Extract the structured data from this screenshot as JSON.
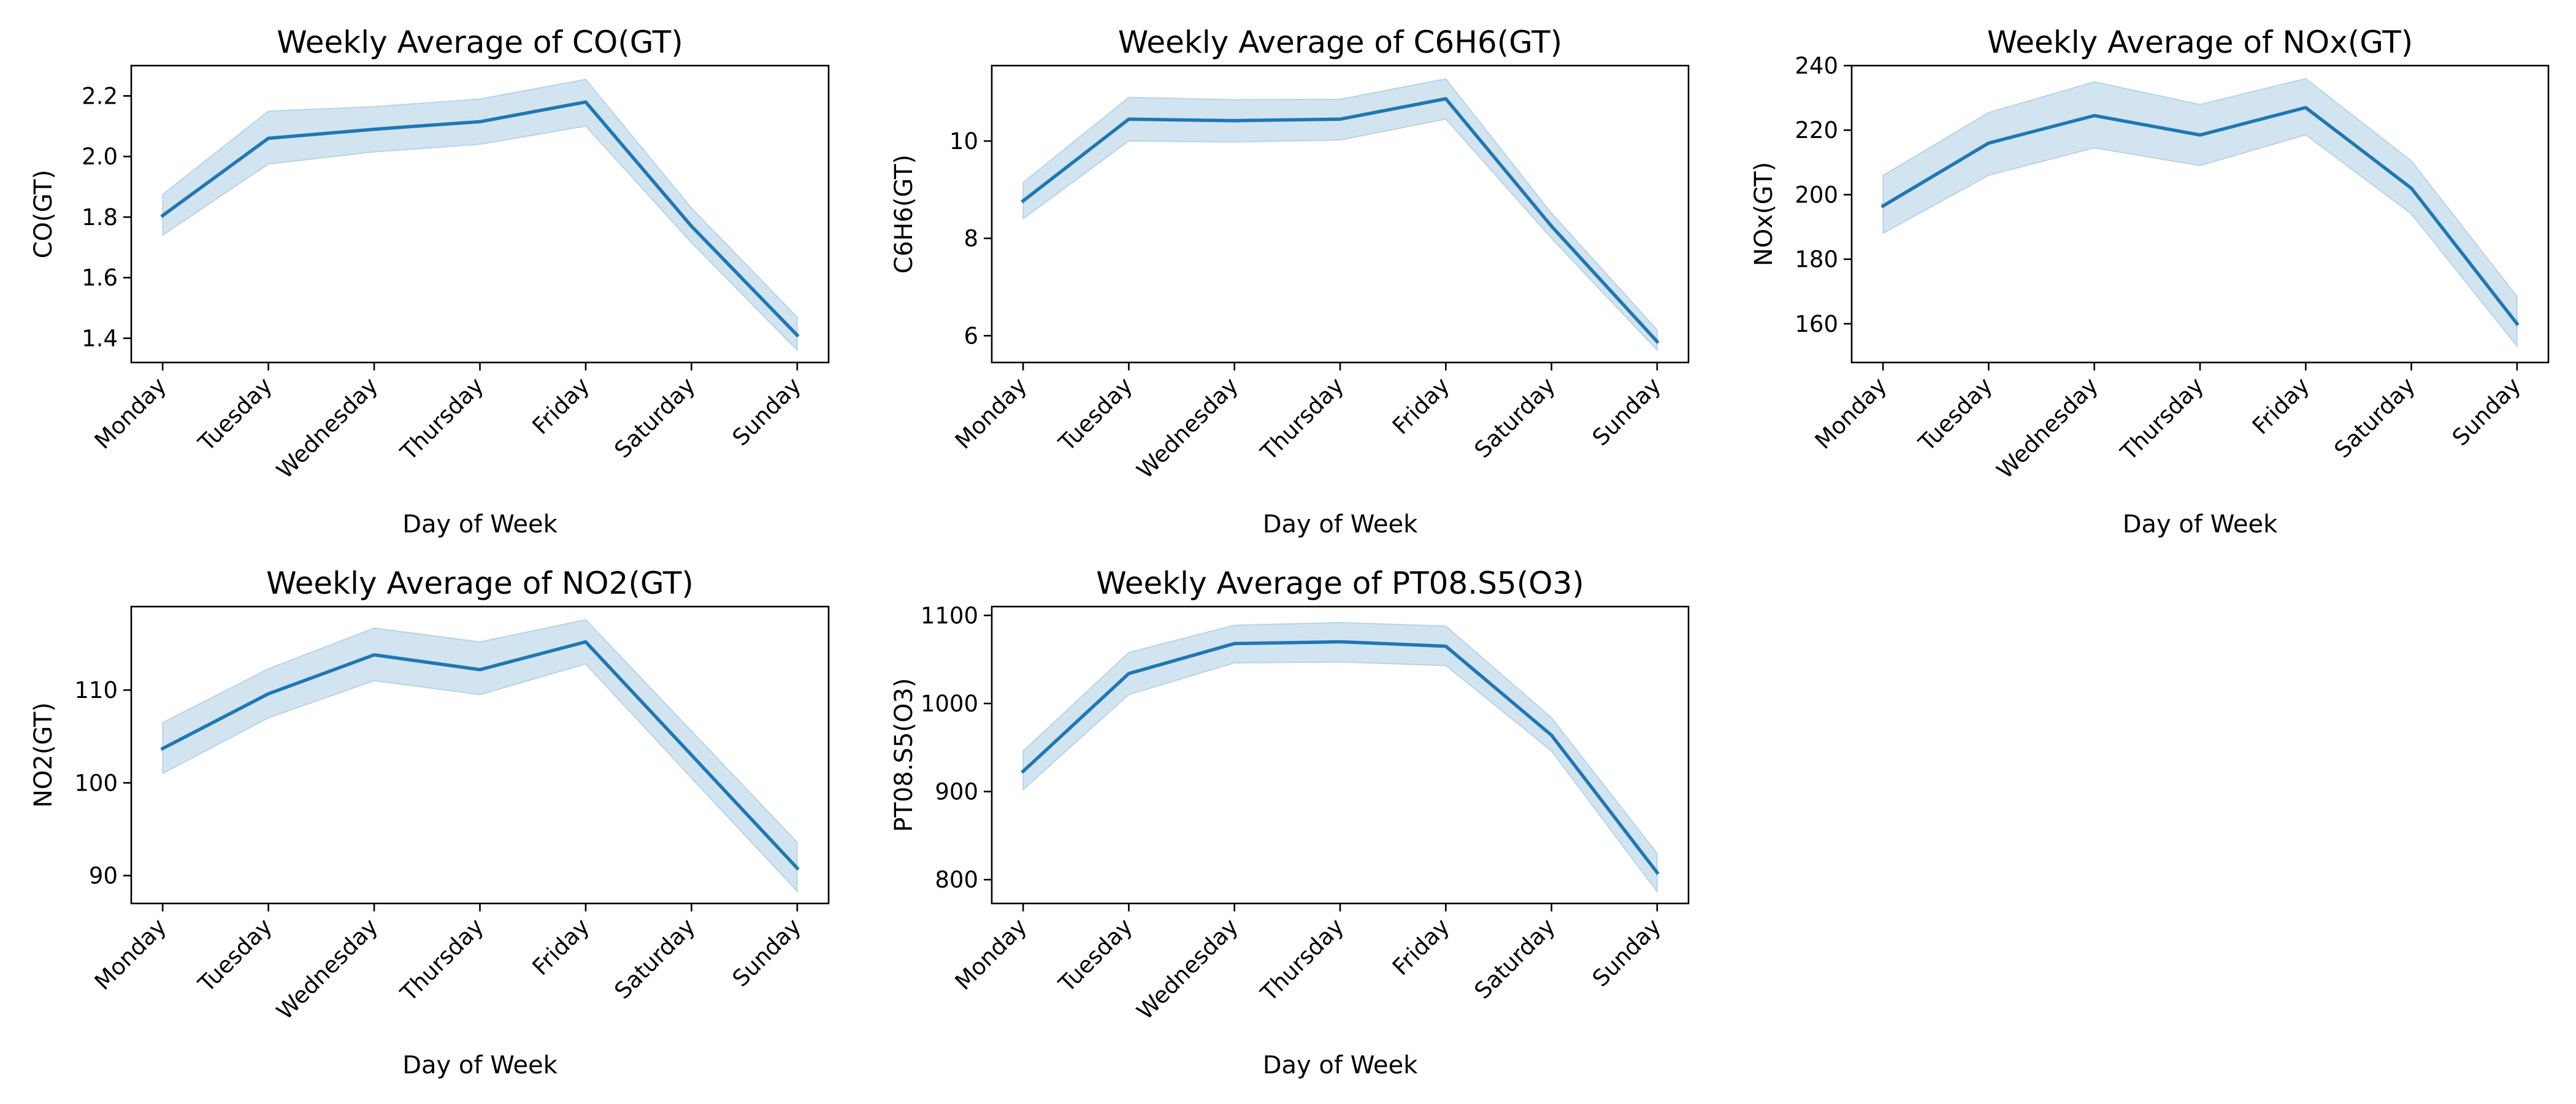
{
  "chart_data": [
    {
      "type": "line",
      "title": "Weekly Average of CO(GT)",
      "xlabel": "Day of Week",
      "ylabel": "CO(GT)",
      "categories": [
        "Monday",
        "Tuesday",
        "Wednesday",
        "Thursday",
        "Friday",
        "Saturday",
        "Sunday"
      ],
      "series": [
        {
          "values": [
            1.805,
            2.06,
            2.09,
            2.115,
            2.18,
            1.77,
            1.41
          ],
          "ci_lower": [
            1.74,
            1.975,
            2.015,
            2.04,
            2.1,
            1.715,
            1.36
          ],
          "ci_upper": [
            1.875,
            2.15,
            2.165,
            2.19,
            2.255,
            1.83,
            1.47
          ]
        }
      ],
      "ylim": [
        1.32,
        2.3
      ],
      "yticks": [
        1.4,
        1.6,
        1.8,
        2.0,
        2.2
      ],
      "ytick_labels": [
        "1.4",
        "1.6",
        "1.8",
        "2.0",
        "2.2"
      ],
      "grid": false,
      "line_color": "#1f77b4",
      "band_color": "#1f77b4"
    },
    {
      "type": "line",
      "title": "Weekly Average of C6H6(GT)",
      "xlabel": "Day of Week",
      "ylabel": "C6H6(GT)",
      "categories": [
        "Monday",
        "Tuesday",
        "Wednesday",
        "Thursday",
        "Friday",
        "Saturday",
        "Sunday"
      ],
      "series": [
        {
          "values": [
            8.77,
            10.45,
            10.42,
            10.45,
            10.87,
            8.25,
            5.88
          ],
          "ci_lower": [
            8.4,
            10.0,
            9.98,
            10.02,
            10.45,
            8.0,
            5.7
          ],
          "ci_upper": [
            9.15,
            10.9,
            10.85,
            10.86,
            11.28,
            8.52,
            6.12
          ]
        }
      ],
      "ylim": [
        5.45,
        11.55
      ],
      "yticks": [
        6,
        8,
        10
      ],
      "ytick_labels": [
        "6",
        "8",
        "10"
      ],
      "grid": false,
      "line_color": "#1f77b4",
      "band_color": "#1f77b4"
    },
    {
      "type": "line",
      "title": "Weekly Average of NOx(GT)",
      "xlabel": "Day of Week",
      "ylabel": "NOx(GT)",
      "categories": [
        "Monday",
        "Tuesday",
        "Wednesday",
        "Thursday",
        "Friday",
        "Saturday",
        "Sunday"
      ],
      "series": [
        {
          "values": [
            196.5,
            216.0,
            224.5,
            218.5,
            227.0,
            202.0,
            160.0
          ],
          "ci_lower": [
            188.0,
            206.0,
            214.5,
            209.0,
            218.5,
            194.0,
            153.0
          ],
          "ci_upper": [
            206.0,
            225.5,
            235.0,
            228.0,
            236.0,
            210.5,
            168.5
          ]
        }
      ],
      "ylim": [
        148,
        240
      ],
      "yticks": [
        160,
        180,
        200,
        220,
        240
      ],
      "ytick_labels": [
        "160",
        "180",
        "200",
        "220",
        "240"
      ],
      "grid": false,
      "line_color": "#1f77b4",
      "band_color": "#1f77b4"
    },
    {
      "type": "line",
      "title": "Weekly Average of NO2(GT)",
      "xlabel": "Day of Week",
      "ylabel": "NO2(GT)",
      "categories": [
        "Monday",
        "Tuesday",
        "Wednesday",
        "Thursday",
        "Friday",
        "Saturday",
        "Sunday"
      ],
      "series": [
        {
          "values": [
            103.7,
            109.6,
            113.8,
            112.2,
            115.2,
            103.0,
            90.8
          ],
          "ci_lower": [
            101.0,
            107.0,
            111.0,
            109.5,
            112.8,
            100.5,
            88.3
          ],
          "ci_upper": [
            106.5,
            112.3,
            116.7,
            115.2,
            117.6,
            105.6,
            93.6
          ]
        }
      ],
      "ylim": [
        87,
        119
      ],
      "yticks": [
        90,
        100,
        110
      ],
      "ytick_labels": [
        "90",
        "100",
        "110"
      ],
      "grid": false,
      "line_color": "#1f77b4",
      "band_color": "#1f77b4"
    },
    {
      "type": "line",
      "title": "Weekly Average of PT08.S5(O3)",
      "xlabel": "Day of Week",
      "ylabel": "PT08.S5(O3)",
      "categories": [
        "Monday",
        "Tuesday",
        "Wednesday",
        "Thursday",
        "Friday",
        "Saturday",
        "Sunday"
      ],
      "series": [
        {
          "values": [
            923,
            1034,
            1068,
            1070,
            1065,
            964,
            808
          ],
          "ci_lower": [
            902,
            1010,
            1046,
            1047,
            1043,
            946,
            786
          ],
          "ci_upper": [
            946,
            1058,
            1089,
            1092,
            1088,
            984,
            830
          ]
        }
      ],
      "ylim": [
        773,
        1110
      ],
      "yticks": [
        800,
        900,
        1000,
        1100
      ],
      "ytick_labels": [
        "800",
        "900",
        "1000",
        "1100"
      ],
      "grid": false,
      "line_color": "#1f77b4",
      "band_color": "#1f77b4"
    }
  ]
}
